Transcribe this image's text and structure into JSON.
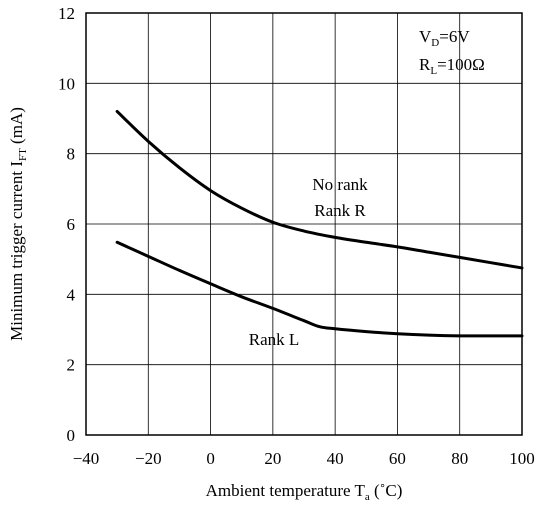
{
  "chart_data": {
    "type": "line",
    "title": "",
    "xlabel": {
      "text": "Ambient temperature T",
      "subscript": "a",
      "unit": " (˚C)"
    },
    "ylabel": {
      "text": "Minimum trigger current I",
      "subscript": "FT",
      "unit": " (mA)"
    },
    "xlim": [
      -40,
      100
    ],
    "ylim": [
      0,
      12
    ],
    "xticks": [
      -40,
      -20,
      0,
      20,
      40,
      60,
      80,
      100
    ],
    "yticks": [
      0,
      2,
      4,
      6,
      8,
      10,
      12
    ],
    "x_tick_labels": [
      "−40",
      "−20",
      "0",
      "20",
      "40",
      "60",
      "80",
      "100"
    ],
    "y_tick_labels": [
      "0",
      "2",
      "4",
      "6",
      "8",
      "10",
      "12"
    ],
    "grid": true,
    "conditions": [
      {
        "prefix": "V",
        "subscript": "D",
        "suffix": "=6V"
      },
      {
        "prefix": "R",
        "subscript": "L",
        "suffix": "=100Ω"
      }
    ],
    "series": [
      {
        "name": "No rank Rank R",
        "label_lines": [
          "No rank",
          "Rank R"
        ],
        "x": [
          -30,
          -20,
          -10,
          0,
          10,
          20,
          30,
          40,
          50,
          60,
          70,
          80,
          90,
          100
        ],
        "y": [
          9.2,
          8.35,
          7.6,
          6.95,
          6.45,
          6.05,
          5.8,
          5.62,
          5.48,
          5.35,
          5.2,
          5.05,
          4.9,
          4.75
        ]
      },
      {
        "name": "Rank L",
        "label_lines": [
          "Rank L"
        ],
        "x": [
          -30,
          -20,
          -10,
          0,
          10,
          20,
          30,
          35,
          40,
          50,
          60,
          70,
          80,
          90,
          100
        ],
        "y": [
          5.48,
          5.08,
          4.68,
          4.3,
          3.93,
          3.6,
          3.25,
          3.08,
          3.02,
          2.94,
          2.88,
          2.84,
          2.82,
          2.82,
          2.82
        ]
      }
    ]
  }
}
